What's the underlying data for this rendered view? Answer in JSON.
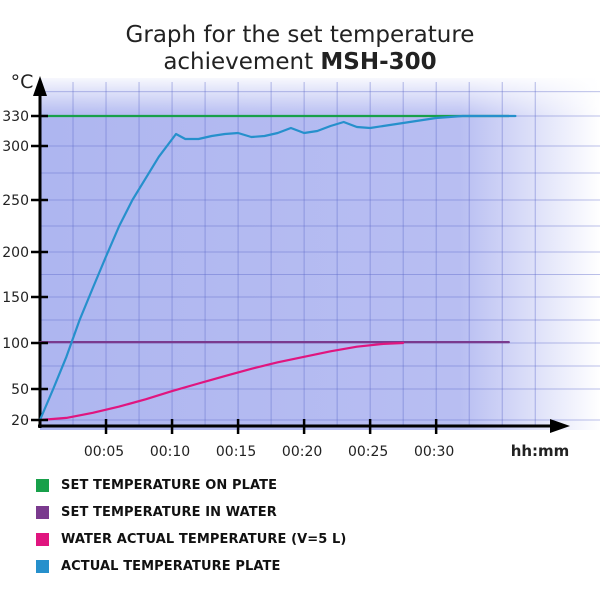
{
  "title": {
    "line1": "Graph for the set temperature",
    "line2_prefix": "achievement ",
    "line2_bold": "MSH-300"
  },
  "chart_data": {
    "type": "line",
    "title": "Graph for the set temperature achievement MSH-300",
    "ylabel": "°C",
    "xlabel": "hh:mm",
    "x_unit": "minutes",
    "xlim": [
      0,
      39
    ],
    "ylim": [
      10,
      365
    ],
    "y_ticks": [
      20,
      50,
      100,
      150,
      200,
      250,
      300,
      330
    ],
    "x_ticks": [
      {
        "value": 5,
        "label": "00:05"
      },
      {
        "value": 10,
        "label": "00:10"
      },
      {
        "value": 15,
        "label": "00:15"
      },
      {
        "value": 20,
        "label": "00:20"
      },
      {
        "value": 25,
        "label": "00:25"
      },
      {
        "value": 30,
        "label": "00:30"
      }
    ],
    "grid": true,
    "legend_position": "bottom",
    "series": [
      {
        "name": "SET TEMPERATURE ON PLATE",
        "color": "#18a04a",
        "x": [
          0,
          35.5
        ],
        "y": [
          330,
          330
        ]
      },
      {
        "name": "SET TEMPERATURE IN WATER",
        "color": "#7a3a8e",
        "x": [
          0,
          35.5
        ],
        "y": [
          101,
          101
        ]
      },
      {
        "name": "WATER ACTUAL TEMPERATURE (V=5 L)",
        "color": "#e0157f",
        "x": [
          0,
          2,
          4,
          6,
          8,
          10,
          12,
          14,
          16,
          18,
          20,
          22,
          24,
          26,
          27.5
        ],
        "y": [
          20,
          22,
          27,
          33,
          40,
          48,
          56,
          64,
          72,
          79,
          85,
          91,
          96,
          99,
          100
        ]
      },
      {
        "name": "ACTUAL TEMPERATURE PLATE",
        "color": "#2690cc",
        "x": [
          0,
          1,
          2,
          3,
          4,
          5,
          6,
          7,
          8,
          9,
          10.3,
          11,
          12,
          13,
          14,
          15,
          16,
          17,
          18,
          19,
          20,
          21,
          22,
          23,
          24,
          25,
          26,
          27,
          28,
          29,
          30,
          31,
          32,
          33,
          34,
          35,
          36
        ],
        "y": [
          20,
          50,
          85,
          125,
          160,
          195,
          225,
          250,
          270,
          290,
          312,
          307,
          307,
          310,
          312,
          313,
          309,
          310,
          313,
          318,
          313,
          315,
          320,
          324,
          319,
          318,
          320,
          322,
          324,
          326,
          328,
          329,
          330,
          330,
          330,
          330,
          330
        ]
      }
    ]
  }
}
